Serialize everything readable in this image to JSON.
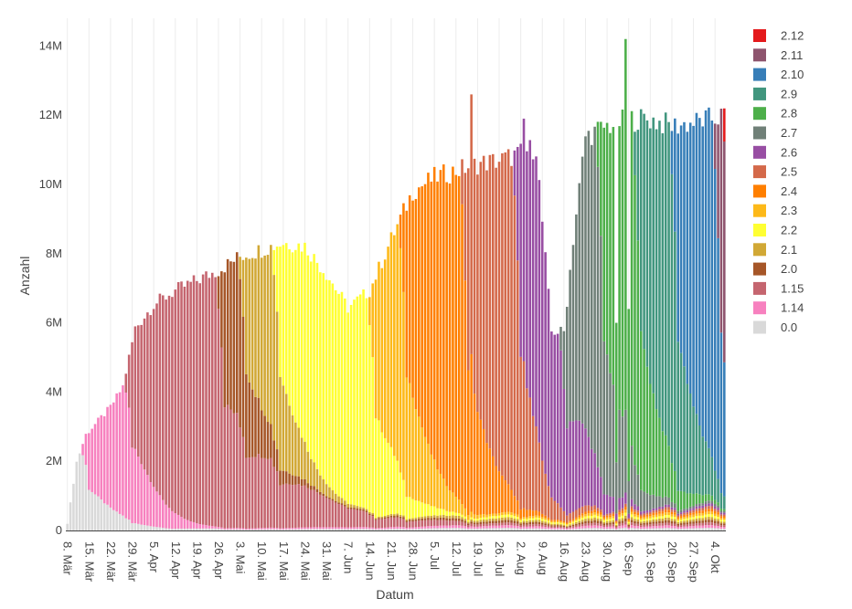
{
  "chart_data": {
    "type": "bar",
    "stacked": true,
    "xlabel": "Datum",
    "ylabel": "Anzahl",
    "ylim": [
      0,
      14800000
    ],
    "grid": "vertical",
    "legend_position": "right",
    "y_ticks": [
      {
        "value": 0,
        "label": "0"
      },
      {
        "value": 2000000,
        "label": "2M"
      },
      {
        "value": 4000000,
        "label": "4M"
      },
      {
        "value": 6000000,
        "label": "6M"
      },
      {
        "value": 8000000,
        "label": "8M"
      },
      {
        "value": 10000000,
        "label": "10M"
      },
      {
        "value": 12000000,
        "label": "12M"
      },
      {
        "value": 14000000,
        "label": "14M"
      }
    ],
    "x_ticks": [
      {
        "day": 0,
        "label": "8. Mär"
      },
      {
        "day": 7,
        "label": "15. Mär"
      },
      {
        "day": 14,
        "label": "22. Mär"
      },
      {
        "day": 21,
        "label": "29. Mär"
      },
      {
        "day": 28,
        "label": "5. Apr"
      },
      {
        "day": 35,
        "label": "12. Apr"
      },
      {
        "day": 42,
        "label": "19. Apr"
      },
      {
        "day": 49,
        "label": "26. Apr"
      },
      {
        "day": 56,
        "label": "3. Mai"
      },
      {
        "day": 63,
        "label": "10. Mai"
      },
      {
        "day": 70,
        "label": "17. Mai"
      },
      {
        "day": 77,
        "label": "24. Mai"
      },
      {
        "day": 84,
        "label": "31. Mai"
      },
      {
        "day": 91,
        "label": "7. Jun"
      },
      {
        "day": 98,
        "label": "14. Jun"
      },
      {
        "day": 105,
        "label": "21. Jun"
      },
      {
        "day": 112,
        "label": "28. Jun"
      },
      {
        "day": 119,
        "label": "5. Jul"
      },
      {
        "day": 126,
        "label": "12. Jul"
      },
      {
        "day": 133,
        "label": "19. Jul"
      },
      {
        "day": 140,
        "label": "26. Jul"
      },
      {
        "day": 147,
        "label": "2. Aug"
      },
      {
        "day": 154,
        "label": "9. Aug"
      },
      {
        "day": 161,
        "label": "16. Aug"
      },
      {
        "day": 168,
        "label": "23. Aug"
      },
      {
        "day": 175,
        "label": "30. Aug"
      },
      {
        "day": 182,
        "label": "6. Sep"
      },
      {
        "day": 189,
        "label": "13. Sep"
      },
      {
        "day": 196,
        "label": "20. Sep"
      },
      {
        "day": 203,
        "label": "27. Sep"
      },
      {
        "day": 210,
        "label": "4. Okt"
      }
    ],
    "days_shown": 214,
    "series": [
      {
        "name": "0.0",
        "color": "#d9d9d9",
        "release_day": -2,
        "peak": 2900000,
        "slow": false
      },
      {
        "name": "1.14",
        "color": "#f781bf",
        "release_day": 5,
        "peak": 3800000,
        "slow": false
      },
      {
        "name": "1.15",
        "color": "#c5656f",
        "release_day": 19,
        "peak": 7200000,
        "slow": true
      },
      {
        "name": "2.0",
        "color": "#a65628",
        "release_day": 49,
        "peak": 7600000,
        "slow": false
      },
      {
        "name": "2.1",
        "color": "#d1a835",
        "release_day": 56,
        "peak": 8200000,
        "slow": false
      },
      {
        "name": "2.2",
        "color": "#ffff33",
        "release_day": 67,
        "peak": 8400000,
        "slow": false
      },
      {
        "name": "2.3",
        "color": "#fdb919",
        "release_day": 98,
        "peak": 8500000,
        "slow": false
      },
      {
        "name": "2.4",
        "color": "#ff7f00",
        "release_day": 108,
        "peak": 10400000,
        "slow": false
      },
      {
        "name": "2.5",
        "color": "#d4694a",
        "release_day": 128,
        "peak": 10800000,
        "slow": false
      },
      {
        "name": "2.6",
        "color": "#984ea3",
        "release_day": 145,
        "peak": 11200000,
        "slow": false
      },
      {
        "name": "2.7",
        "color": "#708078",
        "release_day": 160,
        "peak": 11700000,
        "slow": false
      },
      {
        "name": "2.8",
        "color": "#4daf4a",
        "release_day": 172,
        "peak": 12000000,
        "slow": false
      },
      {
        "name": "2.9",
        "color": "#41967e",
        "release_day": 184,
        "peak": 12000000,
        "slow": false
      },
      {
        "name": "2.10",
        "color": "#377eb8",
        "release_day": 196,
        "peak": 12100000,
        "slow": false
      },
      {
        "name": "2.11",
        "color": "#8e546e",
        "release_day": 210,
        "peak": 12100000,
        "slow": false
      },
      {
        "name": "2.12",
        "color": "#e41a1c",
        "release_day": 213,
        "peak": 12100000,
        "slow": false
      }
    ],
    "daily_totals_samples": [
      {
        "day": 0,
        "value": 200000
      },
      {
        "day": 3,
        "value": 2000000
      },
      {
        "day": 6,
        "value": 2800000
      },
      {
        "day": 14,
        "value": 3600000
      },
      {
        "day": 18,
        "value": 4200000
      },
      {
        "day": 22,
        "value": 5900000
      },
      {
        "day": 28,
        "value": 6600000
      },
      {
        "day": 35,
        "value": 7000000
      },
      {
        "day": 42,
        "value": 7300000
      },
      {
        "day": 49,
        "value": 7600000
      },
      {
        "day": 56,
        "value": 8000000
      },
      {
        "day": 63,
        "value": 8200000
      },
      {
        "day": 70,
        "value": 8400000
      },
      {
        "day": 77,
        "value": 8300000
      },
      {
        "day": 84,
        "value": 7500000
      },
      {
        "day": 91,
        "value": 6500000
      },
      {
        "day": 98,
        "value": 7000000
      },
      {
        "day": 105,
        "value": 8500000
      },
      {
        "day": 112,
        "value": 9900000
      },
      {
        "day": 119,
        "value": 10300000
      },
      {
        "day": 126,
        "value": 10500000
      },
      {
        "day": 133,
        "value": 10700000
      },
      {
        "day": 140,
        "value": 10800000
      },
      {
        "day": 147,
        "value": 11000000
      },
      {
        "day": 152,
        "value": 11200000
      },
      {
        "day": 154,
        "value": 9000000
      },
      {
        "day": 157,
        "value": 5800000
      },
      {
        "day": 161,
        "value": 5800000
      },
      {
        "day": 164,
        "value": 8500000
      },
      {
        "day": 168,
        "value": 11500000
      },
      {
        "day": 175,
        "value": 11800000
      },
      {
        "day": 182,
        "value": 12000000
      },
      {
        "day": 189,
        "value": 12000000
      },
      {
        "day": 196,
        "value": 11800000
      },
      {
        "day": 203,
        "value": 11900000
      },
      {
        "day": 213,
        "value": 12100000
      }
    ],
    "spikes": [
      {
        "day": 131,
        "value": 12600000
      },
      {
        "day": 148,
        "value": 11900000
      },
      {
        "day": 181,
        "value": 14200000
      }
    ],
    "dips": [
      {
        "day": 178,
        "value": 6000000
      },
      {
        "day": 182,
        "value": 6400000
      }
    ]
  }
}
